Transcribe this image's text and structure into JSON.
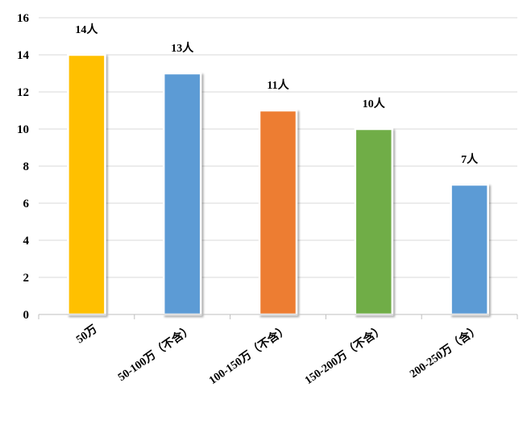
{
  "chart_data": {
    "type": "bar",
    "categories": [
      "50万",
      "50-100万（不含）",
      "100-150万（不含）",
      "150-200万（不含）",
      "200-250万（含）"
    ],
    "values": [
      14,
      13,
      11,
      10,
      7
    ],
    "data_labels": [
      "14人",
      "13人",
      "11人",
      "10人",
      "7人"
    ],
    "colors": [
      "#FFC000",
      "#5B9BD5",
      "#ED7D31",
      "#70AD47",
      "#5B9BD5"
    ],
    "ylim": [
      0,
      16
    ],
    "yticks": [
      0,
      2,
      4,
      6,
      8,
      10,
      12,
      14,
      16
    ],
    "grid": true,
    "legend": "none",
    "title": "",
    "xlabel": "",
    "ylabel": ""
  }
}
